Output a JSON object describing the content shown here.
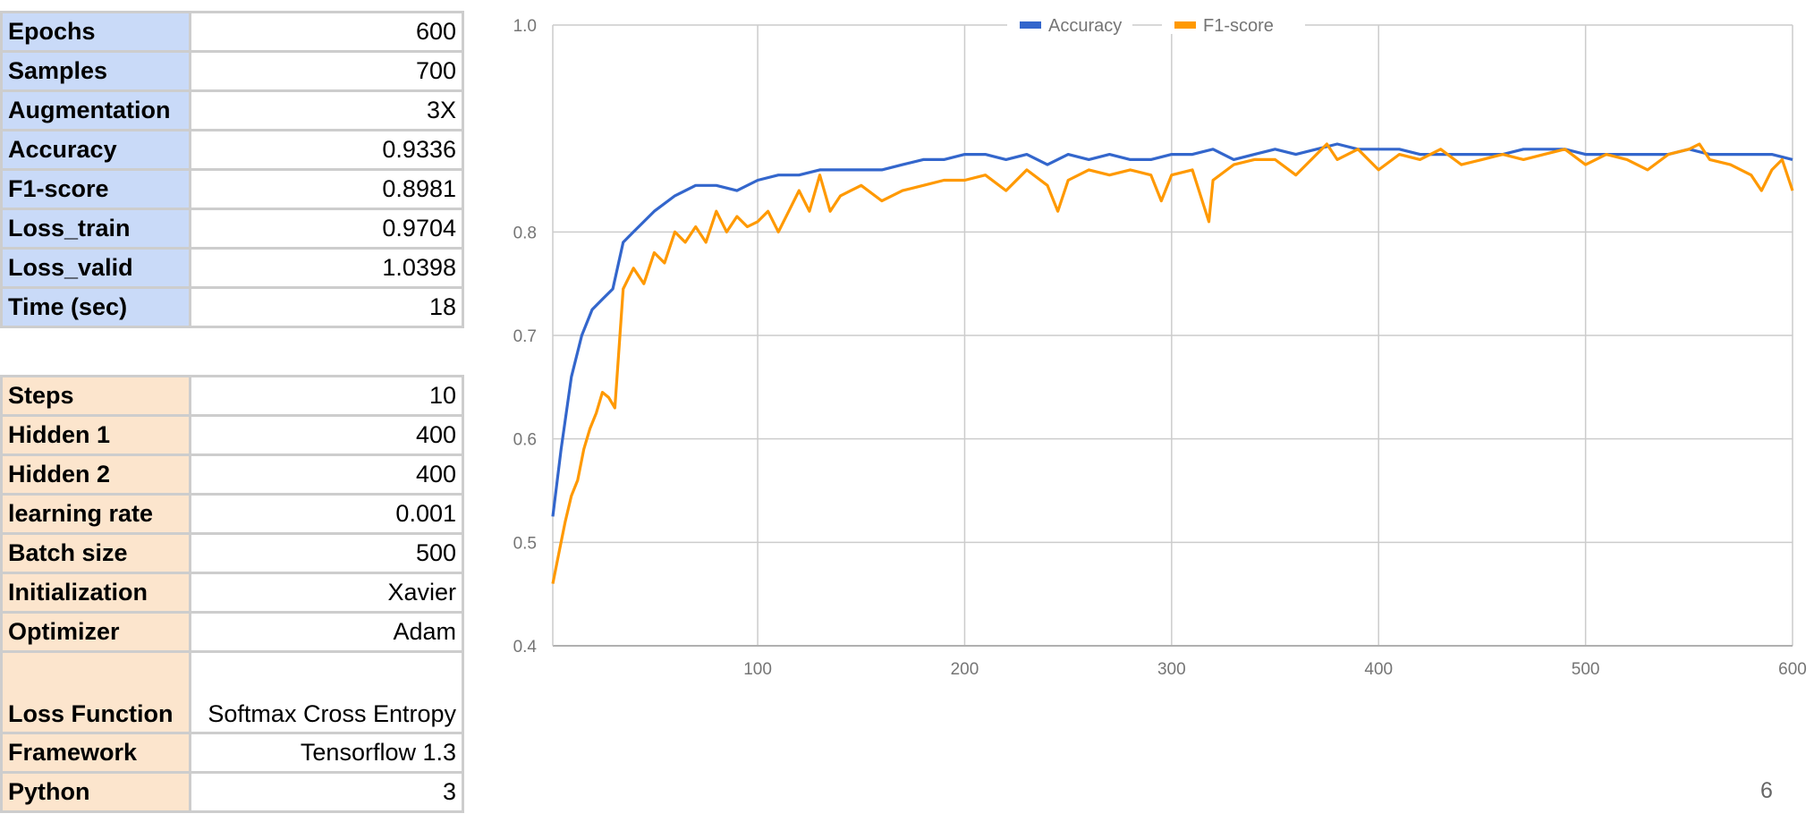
{
  "training_table": [
    {
      "label": "Epochs",
      "value": "600"
    },
    {
      "label": "Samples",
      "value": "700"
    },
    {
      "label": "Augmentation",
      "value": "3X"
    },
    {
      "label": "Accuracy",
      "value": "0.9336"
    },
    {
      "label": "F1-score",
      "value": "0.8981"
    },
    {
      "label": "Loss_train",
      "value": "0.9704"
    },
    {
      "label": "Loss_valid",
      "value": "1.0398"
    },
    {
      "label": "Time (sec)",
      "value": "18"
    }
  ],
  "config_table": [
    {
      "label": "Steps",
      "value": "10"
    },
    {
      "label": "Hidden 1",
      "value": "400"
    },
    {
      "label": "Hidden 2",
      "value": "400"
    },
    {
      "label": "learning rate",
      "value": "0.001"
    },
    {
      "label": "Batch size",
      "value": "500"
    },
    {
      "label": "Initialization",
      "value": "Xavier"
    },
    {
      "label": "Optimizer",
      "value": "Adam"
    },
    {
      "label": "Loss Function",
      "value": "Softmax Cross Entropy"
    },
    {
      "label": "Framework",
      "value": "Tensorflow 1.3"
    },
    {
      "label": "Python",
      "value": "3"
    }
  ],
  "page_number": "6",
  "chart_data": {
    "type": "line",
    "title": "",
    "xlabel": "",
    "ylabel": "",
    "xlim": [
      1,
      600
    ],
    "ylim": [
      0.4,
      1.0
    ],
    "x_ticks": [
      "100",
      "200",
      "300",
      "400",
      "500",
      "600"
    ],
    "y_ticks": [
      "1.0",
      "0.8",
      "0.7",
      "0.6",
      "0.5",
      "0.4"
    ],
    "grid": true,
    "legend_position": "top-center",
    "series": [
      {
        "name": "Accuracy",
        "color": "#3366cc",
        "x": [
          1,
          5,
          10,
          15,
          20,
          25,
          30,
          35,
          40,
          50,
          60,
          70,
          80,
          90,
          100,
          110,
          120,
          130,
          140,
          150,
          160,
          170,
          180,
          190,
          200,
          210,
          220,
          230,
          240,
          250,
          260,
          270,
          280,
          290,
          300,
          310,
          320,
          330,
          340,
          350,
          360,
          370,
          380,
          390,
          400,
          410,
          420,
          430,
          440,
          450,
          460,
          470,
          480,
          490,
          500,
          510,
          520,
          530,
          540,
          550,
          560,
          570,
          580,
          590,
          600
        ],
        "values": [
          0.525,
          0.59,
          0.66,
          0.7,
          0.725,
          0.735,
          0.745,
          0.79,
          0.8,
          0.82,
          0.835,
          0.845,
          0.845,
          0.84,
          0.85,
          0.855,
          0.855,
          0.86,
          0.86,
          0.86,
          0.86,
          0.865,
          0.87,
          0.87,
          0.875,
          0.875,
          0.87,
          0.875,
          0.865,
          0.875,
          0.87,
          0.875,
          0.87,
          0.87,
          0.875,
          0.875,
          0.88,
          0.87,
          0.875,
          0.88,
          0.875,
          0.88,
          0.885,
          0.88,
          0.88,
          0.88,
          0.875,
          0.875,
          0.875,
          0.875,
          0.875,
          0.88,
          0.88,
          0.88,
          0.875,
          0.875,
          0.875,
          0.875,
          0.875,
          0.88,
          0.875,
          0.875,
          0.875,
          0.875,
          0.87
        ]
      },
      {
        "name": "F1-score",
        "color": "#ff9900",
        "x": [
          1,
          4,
          7,
          10,
          13,
          16,
          19,
          22,
          25,
          28,
          31,
          35,
          40,
          45,
          50,
          55,
          60,
          65,
          70,
          75,
          80,
          85,
          90,
          95,
          100,
          105,
          110,
          115,
          120,
          125,
          130,
          135,
          140,
          145,
          150,
          160,
          170,
          180,
          190,
          200,
          210,
          220,
          230,
          240,
          245,
          250,
          260,
          270,
          280,
          290,
          295,
          300,
          310,
          318,
          320,
          330,
          340,
          350,
          360,
          370,
          375,
          380,
          390,
          400,
          410,
          420,
          430,
          440,
          450,
          460,
          470,
          480,
          490,
          500,
          510,
          520,
          530,
          540,
          550,
          555,
          560,
          570,
          580,
          585,
          590,
          595,
          600
        ],
        "values": [
          0.46,
          0.49,
          0.52,
          0.545,
          0.56,
          0.59,
          0.61,
          0.625,
          0.645,
          0.64,
          0.63,
          0.745,
          0.765,
          0.75,
          0.78,
          0.77,
          0.8,
          0.79,
          0.805,
          0.79,
          0.82,
          0.8,
          0.815,
          0.805,
          0.81,
          0.82,
          0.8,
          0.82,
          0.84,
          0.82,
          0.855,
          0.82,
          0.835,
          0.84,
          0.845,
          0.83,
          0.84,
          0.845,
          0.85,
          0.85,
          0.855,
          0.84,
          0.86,
          0.845,
          0.82,
          0.85,
          0.86,
          0.855,
          0.86,
          0.855,
          0.83,
          0.855,
          0.86,
          0.81,
          0.85,
          0.865,
          0.87,
          0.87,
          0.855,
          0.875,
          0.885,
          0.87,
          0.88,
          0.86,
          0.875,
          0.87,
          0.88,
          0.865,
          0.87,
          0.875,
          0.87,
          0.875,
          0.88,
          0.865,
          0.875,
          0.87,
          0.86,
          0.875,
          0.88,
          0.885,
          0.87,
          0.865,
          0.855,
          0.84,
          0.86,
          0.87,
          0.84
        ]
      }
    ]
  }
}
